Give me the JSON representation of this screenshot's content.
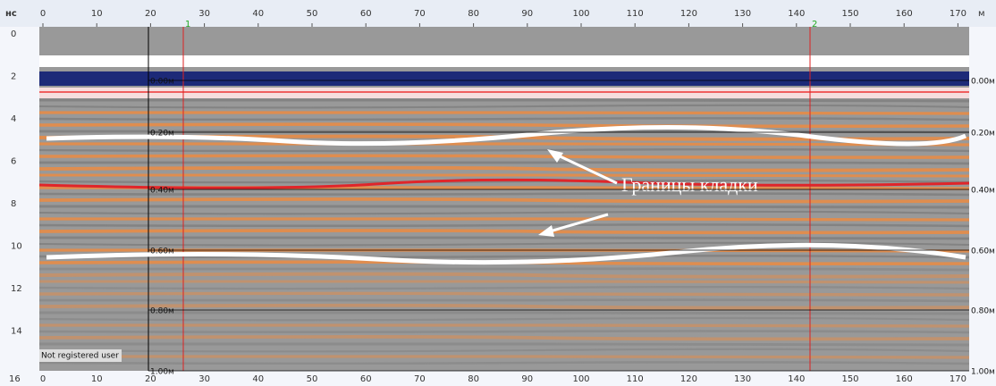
{
  "top_axis": {
    "time_unit": "нс",
    "ticks": [
      "0",
      "10",
      "20",
      "30",
      "40",
      "50",
      "60",
      "70",
      "80",
      "90",
      "100",
      "110",
      "120",
      "130",
      "140",
      "150",
      "160",
      "170"
    ],
    "unit": "м"
  },
  "bottom_axis": {
    "time_end": "16",
    "ticks": [
      "0",
      "10",
      "20",
      "30",
      "40",
      "50",
      "60",
      "70",
      "80",
      "90",
      "100",
      "110",
      "120",
      "130",
      "140",
      "150",
      "160",
      "170"
    ]
  },
  "left_axis": {
    "ticks": [
      "0",
      "2",
      "4",
      "6",
      "8",
      "10",
      "12",
      "14"
    ]
  },
  "markers": [
    "1",
    "2"
  ],
  "depth_labels_left": [
    "0.00м",
    "0.20м",
    "0.40м",
    "0.60м",
    "0.80м",
    "1.00м"
  ],
  "depth_labels_right": [
    "0.00м",
    "0.20м",
    "0.40м",
    "0.60м",
    "0.80м",
    "1.00м"
  ],
  "annotation": "Границы кладки",
  "watermark": "Not registered user"
}
